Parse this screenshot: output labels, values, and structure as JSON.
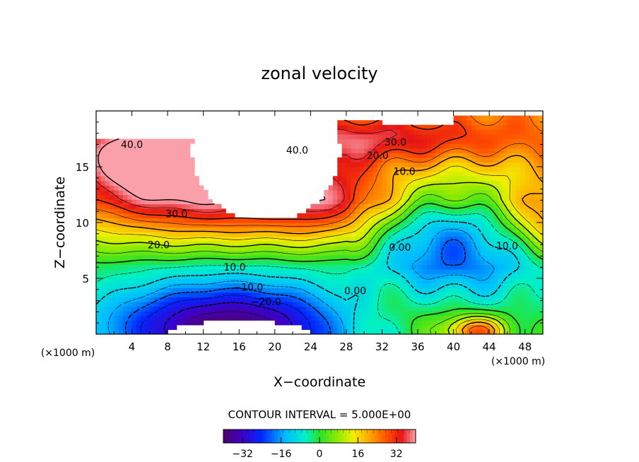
{
  "chart_data": {
    "type": "heatmap",
    "title": "zonal velocity",
    "xlabel": "X−coordinate",
    "ylabel": "Z−coordinate",
    "x_unit": "(×1000 m)",
    "z_unit": "(×1000 m)",
    "xlim": [
      0,
      50
    ],
    "ylim": [
      0,
      20
    ],
    "x_ticks": [
      "4",
      "8",
      "12",
      "16",
      "20",
      "24",
      "28",
      "32",
      "36",
      "40",
      "44",
      "48"
    ],
    "y_ticks": [
      "5",
      "10",
      "15"
    ],
    "contour_interval_text": "CONTOUR INTERVAL = 5.000E+00",
    "contour_labels": [
      {
        "text": "40.0",
        "x": 4.0,
        "z": 17.0
      },
      {
        "text": "40.0",
        "x": 22.5,
        "z": 16.5
      },
      {
        "text": "30.0",
        "x": 33.5,
        "z": 17.2
      },
      {
        "text": "20.0",
        "x": 31.5,
        "z": 16.0
      },
      {
        "text": "10.0",
        "x": 34.5,
        "z": 14.6
      },
      {
        "text": "30.0",
        "x": 9.0,
        "z": 10.8
      },
      {
        "text": "20.0",
        "x": 7.0,
        "z": 8.0
      },
      {
        "text": "10.0",
        "x": 15.5,
        "z": 6.0
      },
      {
        "text": "−10.0",
        "x": 17.0,
        "z": 4.2
      },
      {
        "text": "−20.0",
        "x": 19.0,
        "z": 2.9
      },
      {
        "text": "0.00",
        "x": 29.0,
        "z": 3.9
      },
      {
        "text": "0.00",
        "x": 34.0,
        "z": 7.8
      },
      {
        "text": "10.0",
        "x": 46.0,
        "z": 7.9
      }
    ],
    "field_features": [
      {
        "kind": "jet-max",
        "x": 13.0,
        "z": 13.0,
        "value": 38
      },
      {
        "kind": "jet-max",
        "x": 26.0,
        "z": 13.0,
        "value": 38
      },
      {
        "kind": "upper-jet",
        "x": 4.0,
        "z": 16.5,
        "value": 42
      },
      {
        "kind": "upper-jet",
        "x": 30.0,
        "z": 17.5,
        "value": 35
      },
      {
        "kind": "lower-min",
        "x": 16.0,
        "z": 1.0,
        "value": -36
      },
      {
        "kind": "mid-min",
        "x": 42.0,
        "z": 10.5,
        "value": -12
      },
      {
        "kind": "mid-min",
        "x": 42.0,
        "z": 6.5,
        "value": -8
      },
      {
        "kind": "surface-max",
        "x": 42.0,
        "z": 0.5,
        "value": 28
      },
      {
        "kind": "side-max",
        "x": 50.0,
        "z": 10.0,
        "value": 12
      }
    ],
    "colorbar": {
      "vmin": -40,
      "vmax": 40,
      "tick_values": [
        -32,
        -16,
        0,
        16,
        32
      ],
      "tick_labels": [
        "−32",
        "−16",
        "0",
        "16",
        "32"
      ]
    }
  }
}
